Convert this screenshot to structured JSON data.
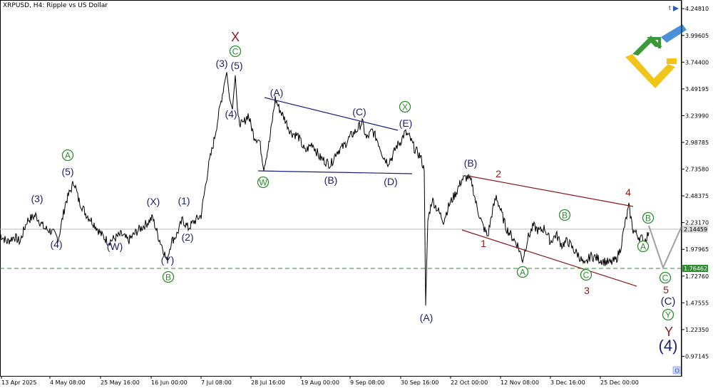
{
  "header": {
    "symbol": "XRPUSD, H4:",
    "description": "Ripple vs US Dollar"
  },
  "chart_data": {
    "type": "line",
    "ylim": [
      0.78,
      4.33
    ],
    "y_ticks": [
      4.2481,
      3.99605,
      3.744,
      3.49195,
      3.2399,
      2.98785,
      2.7358,
      2.48375,
      2.2317,
      1.97965,
      1.7276,
      1.47555,
      1.2235,
      0.97145
    ],
    "y_tick_labels": [
      "4.24810",
      "3.99605",
      "3.74400",
      "3.49195",
      "3.23990",
      "2.98785",
      "2.73580",
      "2.48375",
      "2.23170",
      "1.97965",
      "1.72760",
      "1.47555",
      "1.22350",
      "0.97145"
    ],
    "x_labels": [
      "13 Apr 2025",
      "4 May 08:00",
      "25 May 16:00",
      "16 Jun 00:00",
      "7 Jul 08:00",
      "28 Jul 16:00",
      "19 Aug 00:00",
      "9 Sep 08:00",
      "30 Sep 16:00",
      "22 Oct 00:00",
      "12 Nov 08:00",
      "3 Dec 16:00",
      "25 Dec 00:00"
    ],
    "price_anchors": [
      [
        0,
        2.12
      ],
      [
        10,
        2.05
      ],
      [
        20,
        2.1
      ],
      [
        28,
        2.05
      ],
      [
        38,
        2.25
      ],
      [
        50,
        2.3
      ],
      [
        62,
        2.18
      ],
      [
        72,
        2.15
      ],
      [
        82,
        2.08
      ],
      [
        92,
        2.42
      ],
      [
        98,
        2.52
      ],
      [
        104,
        2.62
      ],
      [
        110,
        2.45
      ],
      [
        120,
        2.32
      ],
      [
        132,
        2.22
      ],
      [
        142,
        2.12
      ],
      [
        152,
        2.05
      ],
      [
        160,
        2.08
      ],
      [
        170,
        2.12
      ],
      [
        180,
        2.06
      ],
      [
        192,
        2.15
      ],
      [
        205,
        2.22
      ],
      [
        214,
        2.28
      ],
      [
        222,
        2.1
      ],
      [
        228,
        2.0
      ],
      [
        234,
        1.87
      ],
      [
        240,
        2.05
      ],
      [
        248,
        2.12
      ],
      [
        256,
        2.26
      ],
      [
        264,
        2.18
      ],
      [
        272,
        2.24
      ],
      [
        282,
        2.3
      ],
      [
        292,
        2.75
      ],
      [
        300,
        3.0
      ],
      [
        308,
        3.3
      ],
      [
        314,
        3.52
      ],
      [
        318,
        3.65
      ],
      [
        322,
        3.4
      ],
      [
        326,
        3.3
      ],
      [
        330,
        3.62
      ],
      [
        334,
        3.2
      ],
      [
        340,
        3.15
      ],
      [
        348,
        3.25
      ],
      [
        356,
        3.05
      ],
      [
        364,
        3.0
      ],
      [
        370,
        2.75
      ],
      [
        378,
        3.0
      ],
      [
        386,
        3.4
      ],
      [
        392,
        3.3
      ],
      [
        400,
        3.2
      ],
      [
        408,
        3.08
      ],
      [
        418,
        3.05
      ],
      [
        428,
        2.9
      ],
      [
        438,
        2.98
      ],
      [
        448,
        2.85
      ],
      [
        458,
        2.8
      ],
      [
        464,
        2.78
      ],
      [
        472,
        2.9
      ],
      [
        482,
        2.95
      ],
      [
        492,
        3.05
      ],
      [
        500,
        3.1
      ],
      [
        508,
        3.18
      ],
      [
        514,
        3.02
      ],
      [
        522,
        3.1
      ],
      [
        530,
        3.0
      ],
      [
        538,
        2.85
      ],
      [
        544,
        2.8
      ],
      [
        550,
        2.85
      ],
      [
        556,
        2.95
      ],
      [
        562,
        3.0
      ],
      [
        568,
        3.08
      ],
      [
        574,
        3.04
      ],
      [
        582,
        2.92
      ],
      [
        590,
        2.85
      ],
      [
        595,
        2.72
      ],
      [
        597,
        1.45
      ],
      [
        600,
        2.25
      ],
      [
        606,
        2.45
      ],
      [
        614,
        2.35
      ],
      [
        622,
        2.25
      ],
      [
        630,
        2.4
      ],
      [
        640,
        2.52
      ],
      [
        648,
        2.64
      ],
      [
        656,
        2.66
      ],
      [
        662,
        2.6
      ],
      [
        668,
        2.4
      ],
      [
        676,
        2.22
      ],
      [
        684,
        2.1
      ],
      [
        690,
        2.32
      ],
      [
        696,
        2.48
      ],
      [
        702,
        2.35
      ],
      [
        710,
        2.18
      ],
      [
        718,
        2.1
      ],
      [
        726,
        2.02
      ],
      [
        733,
        1.88
      ],
      [
        740,
        2.08
      ],
      [
        748,
        2.2
      ],
      [
        756,
        2.15
      ],
      [
        764,
        2.18
      ],
      [
        772,
        2.05
      ],
      [
        780,
        2.12
      ],
      [
        788,
        2.02
      ],
      [
        796,
        2.06
      ],
      [
        804,
        1.98
      ],
      [
        812,
        1.92
      ],
      [
        820,
        1.82
      ],
      [
        828,
        1.92
      ],
      [
        836,
        1.9
      ],
      [
        846,
        1.87
      ],
      [
        856,
        1.85
      ],
      [
        864,
        1.88
      ],
      [
        870,
        1.98
      ],
      [
        876,
        2.2
      ],
      [
        882,
        2.38
      ],
      [
        888,
        2.16
      ],
      [
        896,
        2.1
      ],
      [
        904,
        2.06
      ],
      [
        910,
        2.14
      ]
    ]
  },
  "levels": {
    "current_price_label": "2.14459",
    "support_label": "1.76462"
  },
  "labels": {
    "l_3a": "(3)",
    "l_4a": "(4)",
    "l_Aa": "A",
    "l_5a": "(5)",
    "l_Wa": "(W)",
    "l_Xa": "(X)",
    "l_Ya": "(Y)",
    "l_Ba": "B",
    "l_1a": "(1)",
    "l_2a": "(2)",
    "l_Xred": "X",
    "l_Cc": "C",
    "l_3b": "(3)",
    "l_5b": "(5)",
    "l_4b": "(4)",
    "l_A2": "(A)",
    "l_C2": "(C)",
    "l_E2": "(E)",
    "l_B2": "(B)",
    "l_D2": "(D)",
    "l_W2": "W",
    "l_X2": "X",
    "l_A3": "(A)",
    "l_B3": "(B)",
    "l_r1": "1",
    "l_r2": "2",
    "l_r3": "3",
    "l_r4": "4",
    "l_r5": "5",
    "l_Bc2": "B",
    "l_Ac3": "A",
    "l_Cc3": "C",
    "l_Bc3": "B",
    "l_Ac4": "A",
    "l_Cc5": "C",
    "l_C5": "(C)",
    "l_Yc": "Y",
    "l_Yred": "Y",
    "l_4big": "(4)"
  }
}
